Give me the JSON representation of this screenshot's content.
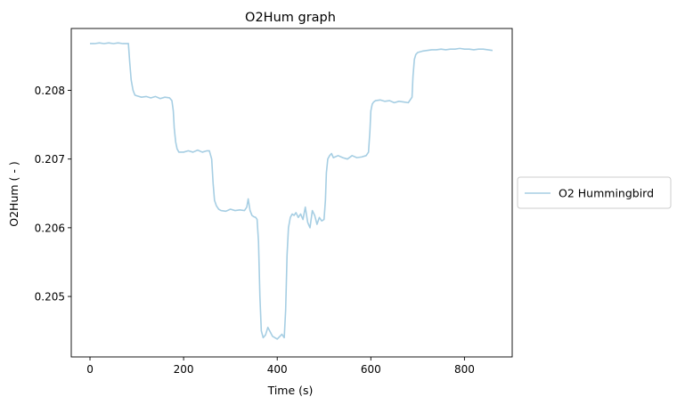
{
  "chart_data": {
    "type": "line",
    "title": "O2Hum graph",
    "xlabel": "Time (s)",
    "ylabel": "O2Hum ( - )",
    "xlim": [
      -40,
      902
    ],
    "ylim": [
      0.20412,
      0.2089
    ],
    "xticks": [
      0,
      200,
      400,
      600,
      800
    ],
    "yticks": [
      0.205,
      0.206,
      0.207,
      0.208
    ],
    "grid": false,
    "legend": "outside-right",
    "series": [
      {
        "name": "O2 Hummingbird",
        "color": "#a6cee3",
        "x": [
          0,
          10,
          20,
          30,
          40,
          50,
          60,
          70,
          82,
          85,
          88,
          92,
          96,
          100,
          110,
          120,
          130,
          140,
          150,
          160,
          170,
          175,
          178,
          180,
          183,
          186,
          190,
          200,
          210,
          220,
          230,
          240,
          250,
          255,
          260,
          263,
          266,
          270,
          275,
          280,
          290,
          300,
          310,
          320,
          330,
          335,
          338,
          342,
          346,
          350,
          354,
          357,
          360,
          363,
          366,
          370,
          375,
          380,
          390,
          400,
          410,
          415,
          418,
          421,
          424,
          428,
          432,
          436,
          440,
          445,
          450,
          455,
          460,
          465,
          470,
          475,
          480,
          485,
          490,
          495,
          500,
          503,
          505,
          508,
          512,
          516,
          520,
          530,
          540,
          550,
          560,
          570,
          580,
          590,
          595,
          598,
          600,
          603,
          606,
          610,
          620,
          630,
          640,
          650,
          660,
          670,
          680,
          688,
          690,
          693,
          696,
          700,
          710,
          720,
          730,
          740,
          750,
          760,
          770,
          780,
          790,
          800,
          810,
          820,
          830,
          840,
          850,
          860
        ],
        "values": [
          0.20868,
          0.20868,
          0.20869,
          0.20868,
          0.20869,
          0.20868,
          0.20869,
          0.20868,
          0.20868,
          0.2084,
          0.20815,
          0.208,
          0.20793,
          0.20792,
          0.2079,
          0.20791,
          0.20789,
          0.20791,
          0.20788,
          0.2079,
          0.20789,
          0.20785,
          0.2077,
          0.20745,
          0.20725,
          0.20715,
          0.2071,
          0.2071,
          0.20712,
          0.2071,
          0.20713,
          0.2071,
          0.20712,
          0.20712,
          0.207,
          0.20665,
          0.2064,
          0.20632,
          0.20627,
          0.20625,
          0.20624,
          0.20627,
          0.20625,
          0.20626,
          0.20625,
          0.2063,
          0.20642,
          0.20625,
          0.20618,
          0.20616,
          0.20615,
          0.20612,
          0.2058,
          0.205,
          0.2045,
          0.2044,
          0.20444,
          0.20455,
          0.20442,
          0.20438,
          0.20445,
          0.2044,
          0.2048,
          0.2056,
          0.206,
          0.20615,
          0.2062,
          0.20618,
          0.20622,
          0.20615,
          0.2062,
          0.20612,
          0.2063,
          0.20608,
          0.206,
          0.20625,
          0.20618,
          0.20605,
          0.20615,
          0.2061,
          0.20612,
          0.2064,
          0.2068,
          0.207,
          0.20705,
          0.20708,
          0.20702,
          0.20705,
          0.20702,
          0.207,
          0.20705,
          0.20702,
          0.20703,
          0.20705,
          0.2071,
          0.2074,
          0.2077,
          0.2078,
          0.20783,
          0.20785,
          0.20786,
          0.20784,
          0.20785,
          0.20782,
          0.20784,
          0.20783,
          0.20782,
          0.2079,
          0.2082,
          0.20845,
          0.20852,
          0.20855,
          0.20857,
          0.20858,
          0.20859,
          0.20859,
          0.2086,
          0.20859,
          0.2086,
          0.2086,
          0.20861,
          0.2086,
          0.2086,
          0.20859,
          0.2086,
          0.2086,
          0.20859,
          0.20858
        ]
      }
    ]
  }
}
